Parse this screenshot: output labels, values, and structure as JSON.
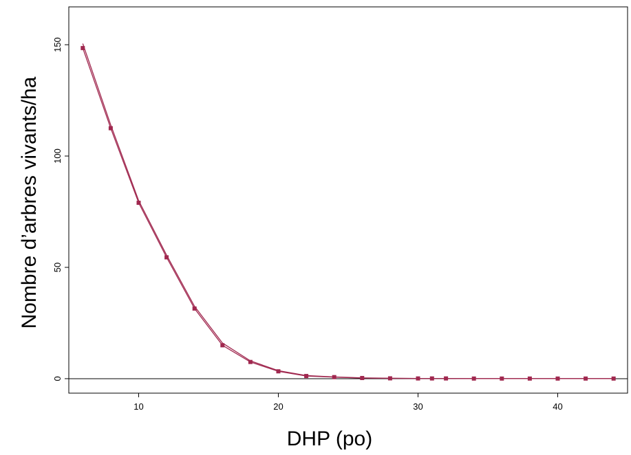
{
  "chart_data": {
    "type": "line",
    "title": "",
    "xlabel": "DHP (po)",
    "ylabel": "Nombre d’arbres vivants/ha",
    "xlim": [
      5,
      45
    ],
    "ylim": [
      -6.5,
      167
    ],
    "xticks": [
      10,
      20,
      30,
      40
    ],
    "yticks": [
      0,
      50,
      100,
      150
    ],
    "reference_line_y": 0,
    "grid": false,
    "legend": "none",
    "series": [
      {
        "color": "#a0284f",
        "marker": "square",
        "x": [
          6,
          8,
          10,
          12,
          14,
          16,
          18,
          20,
          22,
          24,
          26,
          28,
          30,
          31,
          32,
          34,
          36,
          38,
          40,
          42,
          44
        ],
        "values": [
          148.5,
          112.5,
          79,
          54.5,
          31.5,
          15,
          7.5,
          3.3,
          1.2,
          0.7,
          0.3,
          0.15,
          0.1,
          0.1,
          0.1,
          0.05,
          0.05,
          0.05,
          0.05,
          0.05,
          0.05
        ]
      },
      {
        "color": "#a0284f",
        "marker": "none",
        "x": [
          6,
          8,
          10,
          12,
          14,
          16,
          18,
          20,
          22,
          24,
          26,
          28,
          30,
          31,
          32,
          34,
          36,
          38,
          40,
          42,
          44
        ],
        "values": [
          150.5,
          114,
          80,
          55.5,
          32.5,
          16,
          8,
          3.6,
          1.4,
          0.8,
          0.35,
          0.2,
          0.1,
          0.1,
          0.1,
          0.05,
          0.05,
          0.05,
          0.05,
          0.05,
          0.05
        ]
      }
    ]
  }
}
